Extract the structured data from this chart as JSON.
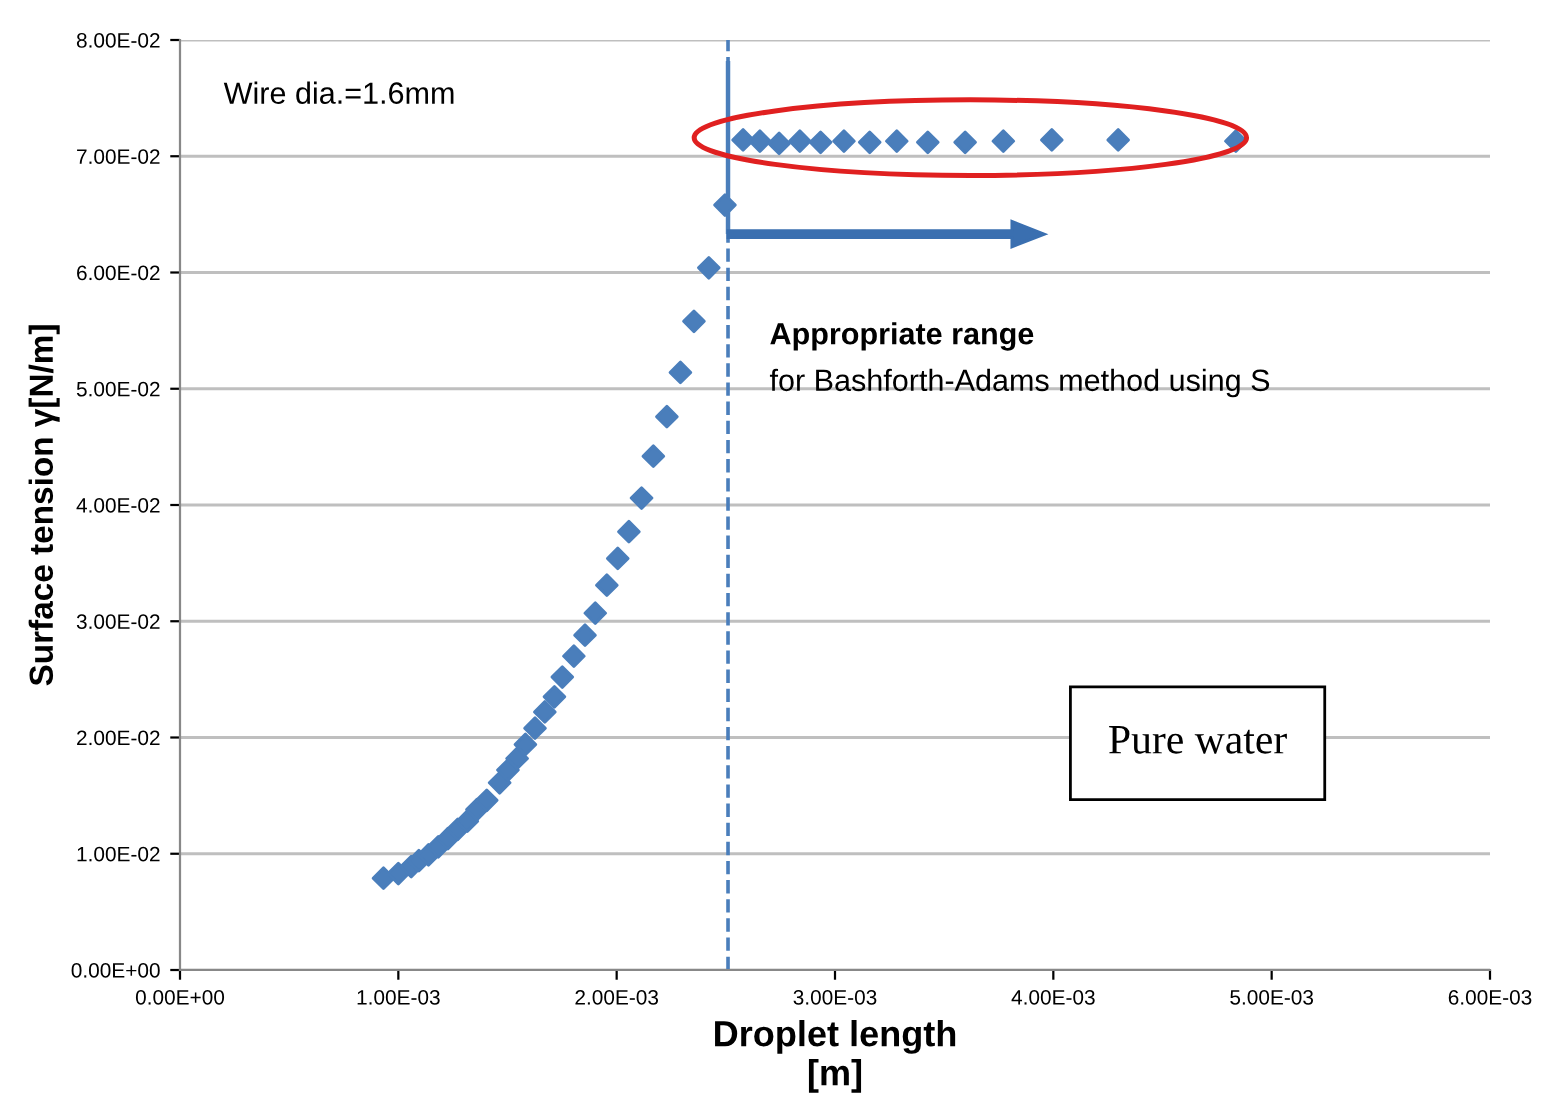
{
  "chart_data": {
    "type": "scatter",
    "xlabel": "Droplet length\n[m]",
    "ylabel": "Surface tension γ[N/m]",
    "x": [
      0.000932,
      0.001,
      0.001059,
      0.001094,
      0.001138,
      0.001183,
      0.001227,
      0.001272,
      0.001316,
      0.00136,
      0.001405,
      0.001464,
      0.001502,
      0.001544,
      0.001582,
      0.001626,
      0.001671,
      0.001715,
      0.001751,
      0.001804,
      0.001855,
      0.001902,
      0.001955,
      0.002005,
      0.002056,
      0.002114,
      0.002168,
      0.00223,
      0.002292,
      0.002354,
      0.002422,
      0.002496,
      0.002579,
      0.002656,
      0.002744,
      0.002839,
      0.002934,
      0.003041,
      0.003159,
      0.003283,
      0.003425,
      0.003596,
      0.003771,
      0.003993,
      0.004297,
      0.004836
    ],
    "series": [
      {
        "color": "#4a7ebb",
        "values": [
          0.0079,
          0.0083,
          0.0089,
          0.0094,
          0.0099,
          0.0106,
          0.0113,
          0.0121,
          0.0128,
          0.0138,
          0.0146,
          0.0161,
          0.0172,
          0.0182,
          0.0194,
          0.0208,
          0.0222,
          0.0235,
          0.0252,
          0.027,
          0.0288,
          0.0307,
          0.0331,
          0.0354,
          0.0377,
          0.0406,
          0.0442,
          0.0476,
          0.0514,
          0.0558,
          0.0604,
          0.0658,
          0.0714,
          0.0713,
          0.0711,
          0.0713,
          0.0712,
          0.0713,
          0.0712,
          0.0713,
          0.0712,
          0.0712,
          0.0713,
          0.0714,
          0.0714,
          0.0713
        ]
      }
    ],
    "xlim": [
      0,
      0.006
    ],
    "ylim": [
      0,
      0.08
    ],
    "xticks": [
      {
        "value": 0,
        "label": "0.00E+00"
      },
      {
        "value": 0.001,
        "label": "1.00E-03"
      },
      {
        "value": 0.002,
        "label": "2.00E-03"
      },
      {
        "value": 0.003,
        "label": "3.00E-03"
      },
      {
        "value": 0.004,
        "label": "4.00E-03"
      },
      {
        "value": 0.005,
        "label": "5.00E-03"
      },
      {
        "value": 0.006,
        "label": "6.00E-03"
      }
    ],
    "yticks": [
      {
        "value": 0,
        "label": "0.00E+00"
      },
      {
        "value": 0.01,
        "label": "1.00E-02"
      },
      {
        "value": 0.02,
        "label": "2.00E-02"
      },
      {
        "value": 0.03,
        "label": "3.00E-02"
      },
      {
        "value": 0.04,
        "label": "4.00E-02"
      },
      {
        "value": 0.05,
        "label": "5.00E-02"
      },
      {
        "value": 0.06,
        "label": "6.00E-02"
      },
      {
        "value": 0.07,
        "label": "7.00E-02"
      },
      {
        "value": 0.08,
        "label": "8.00E-02"
      }
    ],
    "ref_lines": [
      {
        "axis": "x",
        "value": 0.00251,
        "color": "#4a7ebb",
        "line_style": "dashed"
      }
    ],
    "annotations": [
      "Wire dia.=1.6mm",
      "Appropriate range",
      "for Bashforth-Adams method using S",
      "Pure water"
    ],
    "grid": "y",
    "marker": "diamond"
  }
}
